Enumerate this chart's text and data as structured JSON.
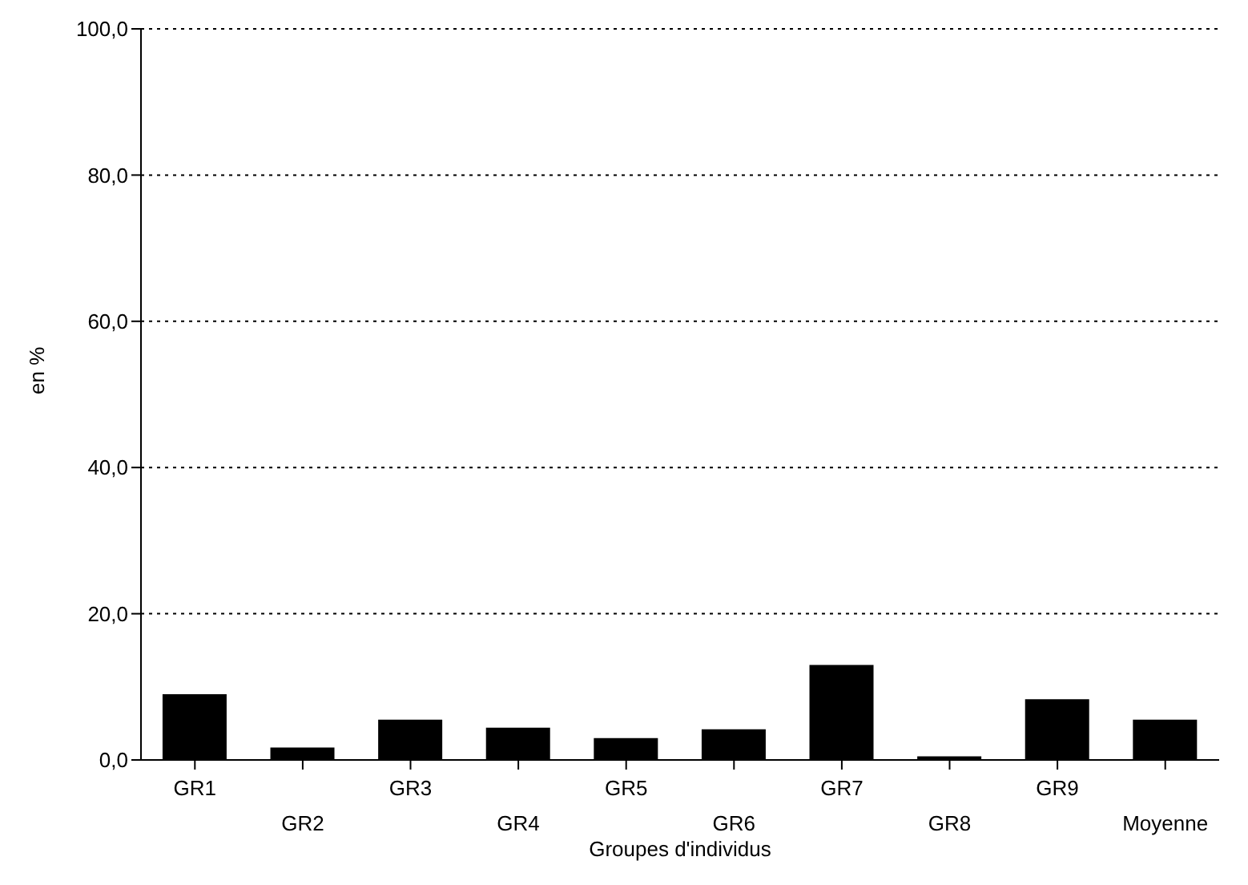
{
  "chart_data": {
    "type": "bar",
    "xlabel": "Groupes d'individus",
    "ylabel": "en %",
    "categories": [
      "GR1",
      "GR2",
      "GR3",
      "GR4",
      "GR5",
      "GR6",
      "GR7",
      "GR8",
      "GR9",
      "Moyenne"
    ],
    "values": [
      9,
      1.7,
      5.5,
      4.4,
      3,
      4.2,
      13,
      0.5,
      8.3,
      5.5
    ],
    "color": "#000000",
    "ylim": [
      0,
      100
    ],
    "yticks": [
      {
        "value": 0,
        "label": "0,0"
      },
      {
        "value": 20,
        "label": "20,0"
      },
      {
        "value": 40,
        "label": "40,0"
      },
      {
        "value": 60,
        "label": "60,0"
      },
      {
        "value": 80,
        "label": "80,0"
      },
      {
        "value": 100,
        "label": "100,0"
      }
    ],
    "grid": "y"
  }
}
